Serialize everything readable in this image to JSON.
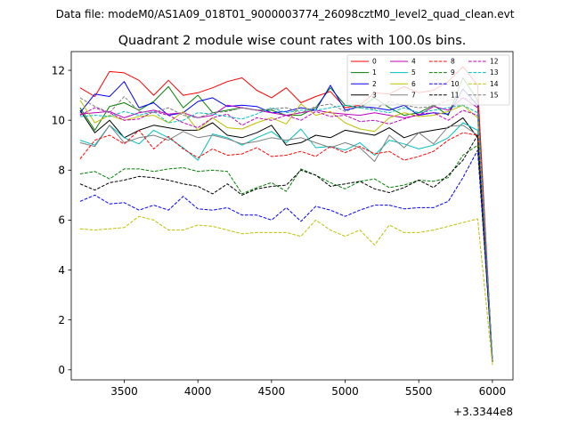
{
  "suptitle": "Data file: modeM0/AS1A09_018T01_9000003774_26098cztM0_level2_quad_clean.evt",
  "chart_data": {
    "type": "line",
    "title": "Quadrant 2 module wise count rates with 100.0s bins.",
    "xlabel": "",
    "ylabel": "",
    "x_offset_label": "+3.3344e8",
    "xlim": [
      3140,
      6140
    ],
    "ylim": [
      -0.4,
      12.75
    ],
    "xticks": [
      3500,
      4000,
      4500,
      5000,
      5500,
      6000
    ],
    "yticks": [
      0,
      2,
      4,
      6,
      8,
      10,
      12
    ],
    "grid": false,
    "legend_position": "top-right",
    "x": [
      3200,
      3300,
      3400,
      3500,
      3600,
      3700,
      3800,
      3900,
      4000,
      4100,
      4200,
      4300,
      4400,
      4500,
      4600,
      4700,
      4800,
      4900,
      5000,
      5100,
      5200,
      5300,
      5400,
      5500,
      5600,
      5700,
      5800,
      5900,
      6000
    ],
    "series": [
      {
        "name": "0",
        "color": "#ff0000",
        "dash": false,
        "values": [
          11.3,
          10.95,
          11.95,
          11.9,
          11.6,
          11.0,
          11.6,
          11.0,
          11.1,
          11.3,
          11.55,
          11.7,
          11.2,
          10.9,
          11.3,
          10.7,
          10.95,
          11.15,
          10.5,
          10.6,
          11.1,
          11.05,
          11.35,
          11.1,
          11.2,
          11.55,
          12.15,
          11.4,
          0.3
        ]
      },
      {
        "name": "1",
        "color": "#008000",
        "dash": false,
        "values": [
          10.5,
          9.6,
          10.55,
          10.7,
          10.4,
          10.75,
          11.35,
          10.5,
          11.0,
          10.3,
          10.4,
          10.5,
          10.4,
          10.4,
          10.2,
          10.2,
          10.5,
          11.3,
          10.6,
          10.5,
          10.9,
          10.5,
          10.2,
          10.3,
          10.6,
          10.2,
          11.7,
          10.8,
          0.4
        ]
      },
      {
        "name": "2",
        "color": "#0000ff",
        "dash": false,
        "values": [
          10.3,
          11.05,
          10.95,
          11.55,
          10.5,
          10.7,
          10.2,
          10.3,
          10.75,
          10.9,
          10.55,
          10.6,
          10.55,
          10.3,
          10.35,
          10.5,
          10.4,
          11.4,
          10.4,
          10.55,
          10.5,
          10.4,
          10.6,
          10.2,
          10.3,
          10.25,
          11.25,
          10.6,
          0.4
        ]
      },
      {
        "name": "3",
        "color": "#000000",
        "dash": false,
        "values": [
          10.4,
          9.5,
          10.0,
          9.3,
          9.6,
          9.8,
          9.7,
          9.6,
          9.6,
          9.9,
          9.4,
          9.3,
          9.5,
          9.8,
          9.0,
          9.1,
          9.4,
          9.3,
          9.6,
          9.5,
          9.4,
          9.7,
          9.3,
          9.5,
          9.6,
          9.7,
          10.1,
          9.3,
          0.35
        ]
      },
      {
        "name": "4",
        "color": "#bf00bf",
        "dash": false,
        "values": [
          10.25,
          10.3,
          10.35,
          10.1,
          10.3,
          10.4,
          10.25,
          10.3,
          10.1,
          10.2,
          10.6,
          10.5,
          10.4,
          10.3,
          10.2,
          10.3,
          10.4,
          10.3,
          10.25,
          10.2,
          10.3,
          10.2,
          10.1,
          10.2,
          10.55,
          10.4,
          10.9,
          10.5,
          0.4
        ]
      },
      {
        "name": "5",
        "color": "#00bfbf",
        "dash": false,
        "values": [
          9.2,
          9.0,
          9.8,
          9.3,
          9.05,
          9.6,
          9.3,
          8.9,
          8.4,
          9.45,
          9.3,
          9.0,
          9.3,
          9.55,
          9.1,
          9.65,
          8.9,
          8.95,
          8.8,
          9.1,
          8.6,
          9.2,
          9.05,
          8.85,
          9.0,
          9.3,
          9.9,
          9.6,
          0.4
        ]
      },
      {
        "name": "6",
        "color": "#bfbf00",
        "dash": false,
        "values": [
          10.8,
          9.9,
          10.2,
          10.0,
          10.15,
          10.2,
          9.9,
          10.35,
          9.6,
          10.1,
          9.7,
          9.65,
          9.9,
          10.1,
          9.85,
          10.65,
          10.2,
          10.35,
          9.9,
          9.65,
          9.55,
          10.1,
          10.3,
          10.15,
          10.2,
          10.35,
          10.6,
          10.1,
          0.3
        ]
      },
      {
        "name": "7",
        "color": "#808080",
        "dash": false,
        "values": [
          9.1,
          8.95,
          9.8,
          9.1,
          9.3,
          9.4,
          9.2,
          9.55,
          9.3,
          9.4,
          9.25,
          9.05,
          9.15,
          9.3,
          9.2,
          9.3,
          9.1,
          8.9,
          9.1,
          8.9,
          8.35,
          9.4,
          8.9,
          9.5,
          9.05,
          9.75,
          9.8,
          9.4,
          0.4
        ]
      },
      {
        "name": "8",
        "color": "#ff0000",
        "dash": true,
        "values": [
          8.45,
          9.2,
          9.4,
          9.05,
          9.6,
          8.85,
          9.35,
          8.85,
          8.5,
          8.85,
          8.6,
          8.65,
          8.9,
          8.55,
          8.6,
          8.75,
          8.55,
          8.95,
          8.7,
          8.95,
          8.65,
          8.75,
          8.4,
          8.55,
          8.75,
          9.2,
          9.5,
          9.4,
          0.4
        ]
      },
      {
        "name": "9",
        "color": "#008000",
        "dash": true,
        "values": [
          7.85,
          7.95,
          7.65,
          8.05,
          8.05,
          7.95,
          8.05,
          8.1,
          7.95,
          8.0,
          7.95,
          7.05,
          7.3,
          7.5,
          7.15,
          8.05,
          7.8,
          7.5,
          7.25,
          7.55,
          7.65,
          7.3,
          7.4,
          7.6,
          7.55,
          7.7,
          8.6,
          9.0,
          0.35
        ]
      },
      {
        "name": "10",
        "color": "#0000ff",
        "dash": true,
        "values": [
          6.75,
          7.0,
          6.65,
          6.7,
          6.4,
          6.6,
          6.4,
          6.95,
          6.45,
          6.4,
          6.5,
          6.2,
          6.2,
          6.0,
          6.5,
          5.95,
          6.55,
          6.4,
          6.15,
          6.4,
          6.6,
          6.6,
          6.45,
          6.5,
          6.5,
          6.75,
          7.7,
          8.8,
          0.4
        ]
      },
      {
        "name": "11",
        "color": "#000000",
        "dash": true,
        "values": [
          7.45,
          7.2,
          7.5,
          7.6,
          7.75,
          7.7,
          7.6,
          7.45,
          7.35,
          7.05,
          7.45,
          7.0,
          7.25,
          7.35,
          7.4,
          8.0,
          7.8,
          7.35,
          7.45,
          7.55,
          7.25,
          7.1,
          7.3,
          7.6,
          7.3,
          7.8,
          8.4,
          9.4,
          0.3
        ]
      },
      {
        "name": "12",
        "color": "#bf00bf",
        "dash": true,
        "values": [
          10.2,
          10.5,
          10.3,
          10.0,
          10.05,
          10.35,
          10.2,
          9.9,
          9.7,
          10.1,
          10.25,
          9.8,
          10.1,
          10.0,
          10.2,
          10.0,
          10.35,
          10.15,
          10.2,
          9.95,
          10.0,
          9.85,
          10.05,
          10.25,
          10.3,
          10.0,
          10.4,
          10.2,
          0.4
        ]
      },
      {
        "name": "13",
        "color": "#00bfbf",
        "dash": true,
        "values": [
          10.15,
          10.2,
          10.15,
          10.35,
          10.2,
          10.35,
          9.9,
          10.0,
          10.3,
          10.25,
          10.15,
          10.05,
          10.25,
          10.5,
          10.3,
          10.4,
          10.4,
          10.5,
          10.6,
          10.5,
          10.4,
          10.3,
          10.5,
          10.3,
          10.4,
          10.5,
          10.6,
          10.3,
          0.4
        ]
      },
      {
        "name": "14",
        "color": "#bfbf00",
        "dash": true,
        "values": [
          5.65,
          5.6,
          5.65,
          5.7,
          6.15,
          6.0,
          5.6,
          5.6,
          5.8,
          5.75,
          5.6,
          5.45,
          5.5,
          5.5,
          5.5,
          5.35,
          6.0,
          5.6,
          5.35,
          5.6,
          5.0,
          5.8,
          5.5,
          5.5,
          5.6,
          5.75,
          5.9,
          6.05,
          0.2
        ]
      },
      {
        "name": "15",
        "color": "#808080",
        "dash": true,
        "values": [
          10.9,
          10.55,
          10.3,
          10.95,
          10.35,
          10.3,
          10.5,
          10.2,
          10.1,
          10.3,
          10.35,
          10.5,
          10.4,
          10.45,
          10.5,
          10.3,
          10.55,
          10.65,
          10.35,
          10.55,
          10.45,
          10.75,
          10.6,
          10.5,
          10.55,
          10.8,
          10.9,
          10.75,
          0.4
        ]
      }
    ]
  }
}
